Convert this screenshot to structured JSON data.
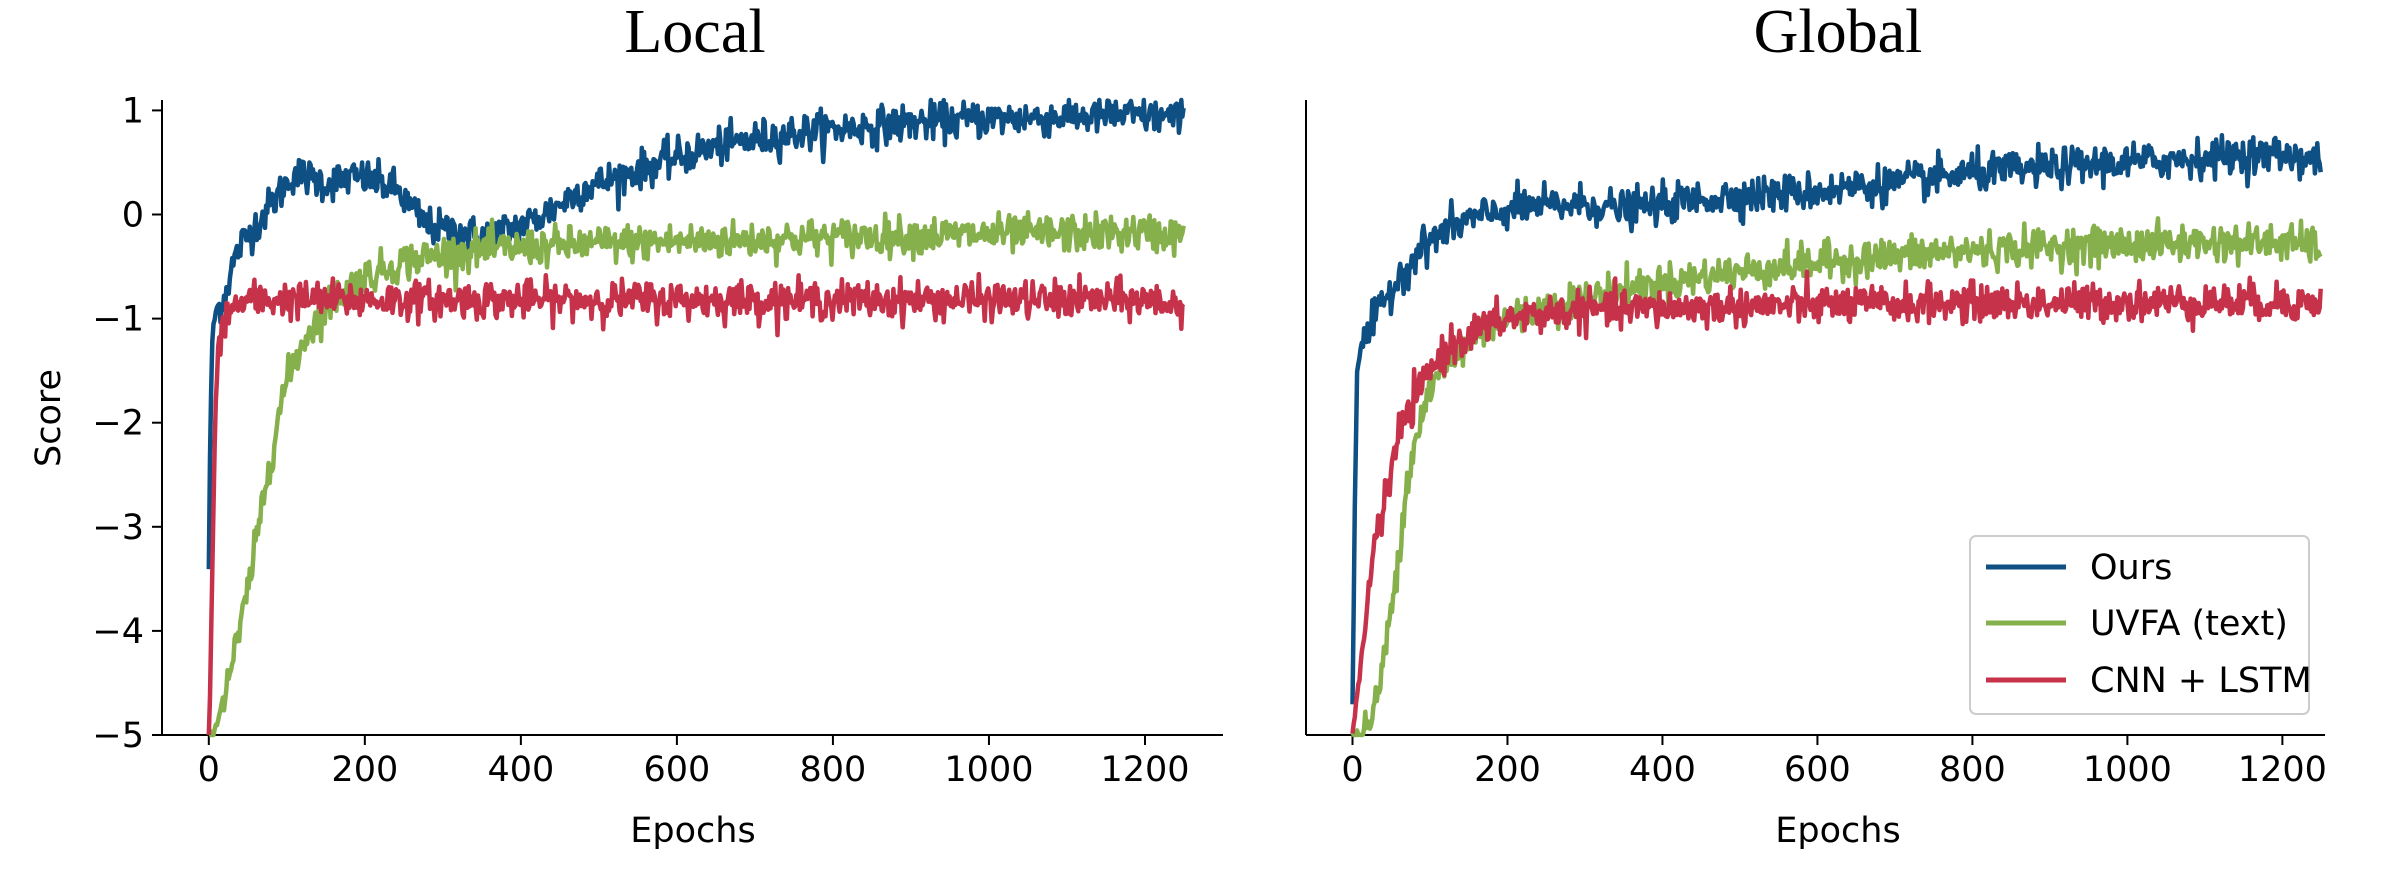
{
  "chart_data": [
    {
      "type": "line",
      "title": "Local",
      "xlabel": "Epochs",
      "ylabel": "Score",
      "xlim": [
        -60,
        1300
      ],
      "ylim": [
        -5,
        1.1
      ],
      "xticks": [
        0,
        200,
        400,
        600,
        800,
        1000,
        1200
      ],
      "yticks": [
        -5,
        -4,
        -3,
        -2,
        -1,
        0,
        1
      ],
      "xtick_labels": [
        "0",
        "200",
        "400",
        "600",
        "800",
        "1000",
        "1200"
      ],
      "ytick_labels": [
        "−5",
        "−4",
        "−3",
        "−2",
        "−1",
        "0",
        "1"
      ],
      "grid": false,
      "legend": false,
      "series": [
        {
          "name": "Ours",
          "color": "#0e4f84",
          "noise": 0.09,
          "x": [
            0,
            2,
            5,
            10,
            20,
            30,
            40,
            60,
            80,
            100,
            110,
            130,
            150,
            180,
            200,
            220,
            240,
            260,
            280,
            300,
            320,
            340,
            360,
            380,
            400,
            420,
            450,
            480,
            520,
            560,
            600,
            650,
            700,
            750,
            800,
            850,
            900,
            950,
            1000,
            1050,
            1100,
            1150,
            1200,
            1250
          ],
          "y": [
            -3.4,
            -2.0,
            -1.1,
            -0.9,
            -0.8,
            -0.5,
            -0.3,
            -0.1,
            0.1,
            0.3,
            0.4,
            0.35,
            0.3,
            0.35,
            0.35,
            0.3,
            0.25,
            0.05,
            -0.1,
            -0.15,
            -0.15,
            -0.2,
            -0.2,
            -0.15,
            -0.1,
            -0.05,
            0.1,
            0.25,
            0.35,
            0.45,
            0.55,
            0.65,
            0.72,
            0.78,
            0.82,
            0.85,
            0.88,
            0.9,
            0.92,
            0.93,
            0.94,
            0.95,
            0.95,
            0.92
          ]
        },
        {
          "name": "UVFA (text)",
          "color": "#86b04b",
          "noise": 0.09,
          "x": [
            0,
            5,
            10,
            20,
            30,
            40,
            50,
            60,
            70,
            80,
            90,
            100,
            110,
            130,
            150,
            170,
            200,
            250,
            300,
            350,
            400,
            450,
            500,
            550,
            600,
            650,
            700,
            750,
            800,
            850,
            900,
            950,
            1000,
            1050,
            1100,
            1150,
            1200,
            1250
          ],
          "y": [
            -5.0,
            -5.0,
            -4.9,
            -4.6,
            -4.3,
            -4.0,
            -3.6,
            -3.2,
            -2.7,
            -2.3,
            -1.9,
            -1.6,
            -1.4,
            -1.1,
            -0.9,
            -0.75,
            -0.6,
            -0.45,
            -0.38,
            -0.34,
            -0.32,
            -0.3,
            -0.28,
            -0.27,
            -0.26,
            -0.25,
            -0.24,
            -0.23,
            -0.22,
            -0.21,
            -0.2,
            -0.2,
            -0.19,
            -0.19,
            -0.18,
            -0.18,
            -0.18,
            -0.2
          ]
        },
        {
          "name": "CNN + LSTM",
          "color": "#c5324a",
          "noise": 0.09,
          "x": [
            0,
            2,
            5,
            8,
            12,
            16,
            20,
            30,
            50,
            100,
            150,
            200,
            300,
            400,
            500,
            600,
            700,
            800,
            900,
            1000,
            1100,
            1200,
            1250
          ],
          "y": [
            -5.0,
            -4.5,
            -3.2,
            -2.0,
            -1.3,
            -1.1,
            -1.0,
            -0.9,
            -0.82,
            -0.82,
            -0.82,
            -0.82,
            -0.82,
            -0.82,
            -0.82,
            -0.82,
            -0.82,
            -0.82,
            -0.82,
            -0.82,
            -0.82,
            -0.82,
            -0.88
          ]
        }
      ]
    },
    {
      "type": "line",
      "title": "Global",
      "xlabel": "Epochs",
      "ylabel": "",
      "xlim": [
        -60,
        1255
      ],
      "ylim": [
        -5,
        1.1
      ],
      "xticks": [
        0,
        200,
        400,
        600,
        800,
        1000,
        1200
      ],
      "yticks": [],
      "xtick_labels": [
        "0",
        "200",
        "400",
        "600",
        "800",
        "1000",
        "1200"
      ],
      "ytick_labels": [],
      "grid": false,
      "legend": true,
      "legend_position": "lower right",
      "series": [
        {
          "name": "Ours",
          "color": "#0e4f84",
          "noise": 0.09,
          "x": [
            0,
            3,
            6,
            10,
            20,
            30,
            40,
            60,
            80,
            100,
            120,
            150,
            180,
            200,
            250,
            300,
            350,
            400,
            450,
            500,
            550,
            600,
            650,
            700,
            750,
            800,
            850,
            900,
            950,
            1000,
            1050,
            1100,
            1150,
            1200,
            1250
          ],
          "y": [
            -4.7,
            -2.8,
            -1.5,
            -1.3,
            -1.15,
            -1.0,
            -0.85,
            -0.6,
            -0.4,
            -0.25,
            -0.15,
            -0.05,
            0.0,
            0.05,
            0.08,
            0.1,
            0.05,
            0.1,
            0.15,
            0.18,
            0.2,
            0.22,
            0.27,
            0.3,
            0.35,
            0.4,
            0.42,
            0.45,
            0.48,
            0.5,
            0.52,
            0.55,
            0.57,
            0.58,
            0.52
          ]
        },
        {
          "name": "UVFA (text)",
          "color": "#86b04b",
          "noise": 0.09,
          "x": [
            0,
            10,
            20,
            30,
            40,
            50,
            60,
            70,
            80,
            90,
            100,
            120,
            140,
            160,
            180,
            200,
            250,
            300,
            350,
            400,
            450,
            500,
            550,
            600,
            650,
            700,
            750,
            800,
            850,
            900,
            950,
            1000,
            1050,
            1100,
            1150,
            1200,
            1250
          ],
          "y": [
            -5.0,
            -5.0,
            -4.95,
            -4.7,
            -4.3,
            -3.8,
            -3.2,
            -2.6,
            -2.2,
            -1.9,
            -1.7,
            -1.45,
            -1.3,
            -1.15,
            -1.05,
            -1.0,
            -0.9,
            -0.8,
            -0.72,
            -0.66,
            -0.6,
            -0.55,
            -0.5,
            -0.46,
            -0.43,
            -0.4,
            -0.37,
            -0.35,
            -0.33,
            -0.31,
            -0.3,
            -0.29,
            -0.28,
            -0.27,
            -0.27,
            -0.27,
            -0.3
          ]
        },
        {
          "name": "CNN + LSTM",
          "color": "#c5324a",
          "noise": 0.09,
          "x": [
            0,
            5,
            10,
            15,
            20,
            30,
            40,
            50,
            60,
            80,
            100,
            120,
            150,
            200,
            250,
            300,
            400,
            500,
            600,
            700,
            800,
            900,
            1000,
            1100,
            1200,
            1250
          ],
          "y": [
            -5.0,
            -4.7,
            -4.4,
            -4.0,
            -3.6,
            -3.1,
            -2.8,
            -2.5,
            -2.1,
            -1.8,
            -1.5,
            -1.3,
            -1.15,
            -1.0,
            -0.95,
            -0.92,
            -0.9,
            -0.88,
            -0.87,
            -0.86,
            -0.85,
            -0.85,
            -0.84,
            -0.84,
            -0.84,
            -0.86
          ]
        }
      ]
    }
  ]
}
